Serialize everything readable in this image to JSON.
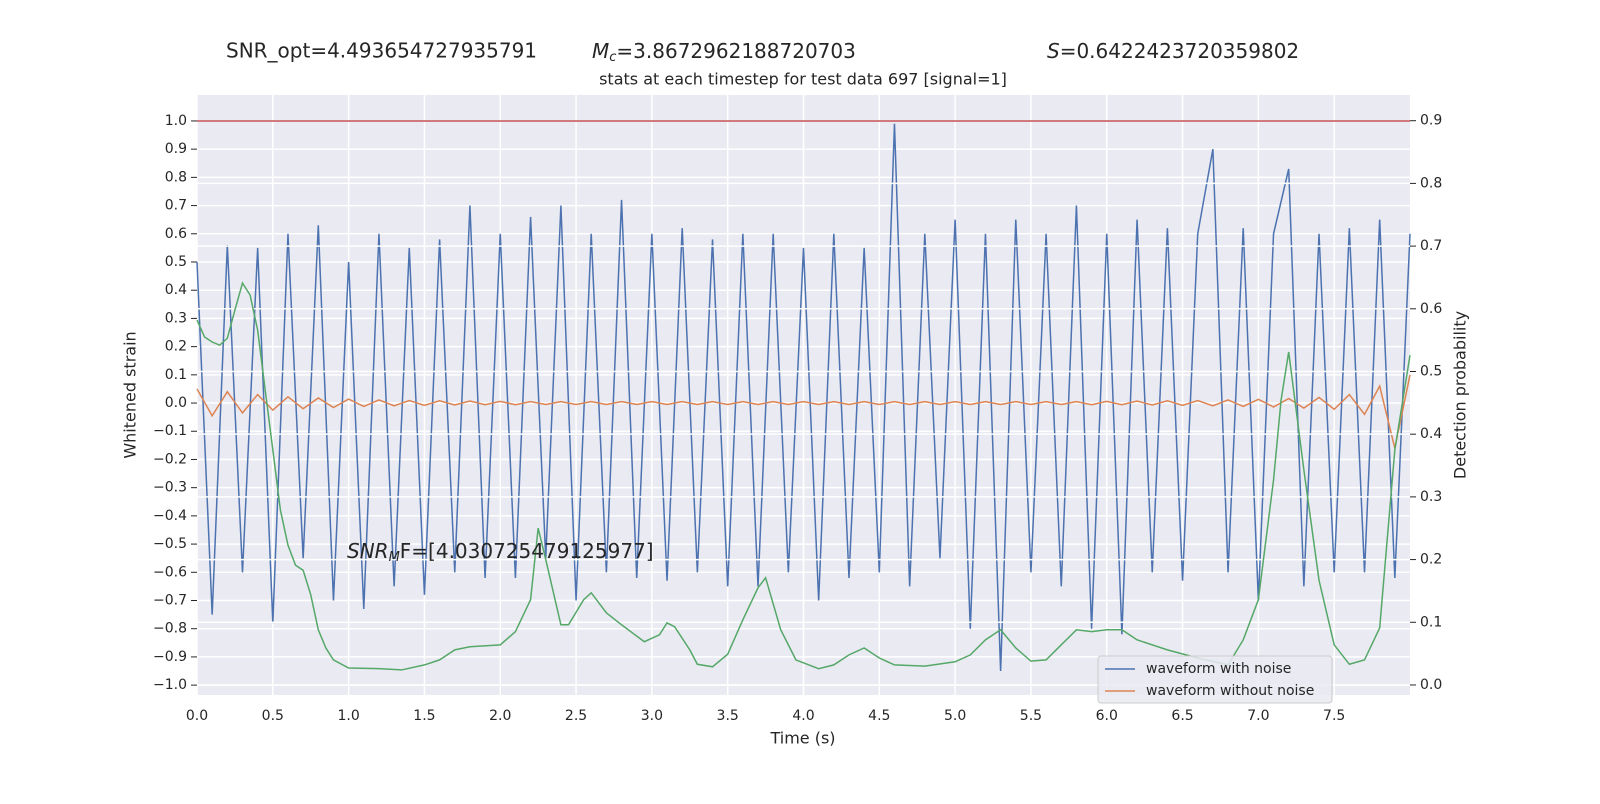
{
  "chart_data": {
    "type": "line",
    "annotations": {
      "snr_opt": "SNR_opt=4.493654727935791",
      "mc": {
        "symbol": "M",
        "subscript": "c",
        "text": "=3.8672962188720703"
      },
      "s": {
        "symbol": "S",
        "text": "=0.6422423720359802"
      },
      "snr_mf": {
        "symbol": "SNR",
        "subscript": "M",
        "text": "F=[4.030725479125977]"
      }
    },
    "title": "stats at each timestep for test data 697 [signal=1]",
    "xlabel": "Time (s)",
    "ylabel": "Whitened strain",
    "y2label": "Detection probability",
    "xlim": [
      0,
      8
    ],
    "ylim": [
      -1.035,
      1.092
    ],
    "y2lim": [
      -0.016,
      0.941
    ],
    "xticks": [
      {
        "value": 0,
        "label": "0.0"
      },
      {
        "value": 0.5,
        "label": "0.5"
      },
      {
        "value": 1,
        "label": "1.0"
      },
      {
        "value": 1.5,
        "label": "1.5"
      },
      {
        "value": 2,
        "label": "2.0"
      },
      {
        "value": 2.5,
        "label": "2.5"
      },
      {
        "value": 3,
        "label": "3.0"
      },
      {
        "value": 3.5,
        "label": "3.5"
      },
      {
        "value": 4,
        "label": "4.0"
      },
      {
        "value": 4.5,
        "label": "4.5"
      },
      {
        "value": 5,
        "label": "5.0"
      },
      {
        "value": 5.5,
        "label": "5.5"
      },
      {
        "value": 6,
        "label": "6.0"
      },
      {
        "value": 6.5,
        "label": "6.5"
      },
      {
        "value": 7,
        "label": "7.0"
      },
      {
        "value": 7.5,
        "label": "7.5"
      }
    ],
    "yticks": [
      {
        "value": -1,
        "label": "−1.0"
      },
      {
        "value": -0.9,
        "label": "−0.9"
      },
      {
        "value": -0.8,
        "label": "−0.8"
      },
      {
        "value": -0.7,
        "label": "−0.7"
      },
      {
        "value": -0.6,
        "label": "−0.6"
      },
      {
        "value": -0.5,
        "label": "−0.5"
      },
      {
        "value": -0.4,
        "label": "−0.4"
      },
      {
        "value": -0.3,
        "label": "−0.3"
      },
      {
        "value": -0.2,
        "label": "−0.2"
      },
      {
        "value": -0.1,
        "label": "−0.1"
      },
      {
        "value": 0,
        "label": "0.0"
      },
      {
        "value": 0.1,
        "label": "0.1"
      },
      {
        "value": 0.2,
        "label": "0.2"
      },
      {
        "value": 0.3,
        "label": "0.3"
      },
      {
        "value": 0.4,
        "label": "0.4"
      },
      {
        "value": 0.5,
        "label": "0.5"
      },
      {
        "value": 0.6,
        "label": "0.6"
      },
      {
        "value": 0.7,
        "label": "0.7"
      },
      {
        "value": 0.8,
        "label": "0.8"
      },
      {
        "value": 0.9,
        "label": "0.9"
      },
      {
        "value": 1,
        "label": "1.0"
      }
    ],
    "y2ticks": [
      {
        "value": 0,
        "label": "0.0"
      },
      {
        "value": 0.1,
        "label": "0.1"
      },
      {
        "value": 0.2,
        "label": "0.2"
      },
      {
        "value": 0.3,
        "label": "0.3"
      },
      {
        "value": 0.4,
        "label": "0.4"
      },
      {
        "value": 0.5,
        "label": "0.5"
      },
      {
        "value": 0.6,
        "label": "0.6"
      },
      {
        "value": 0.7,
        "label": "0.7"
      },
      {
        "value": 0.8,
        "label": "0.8"
      },
      {
        "value": 0.9,
        "label": "0.9"
      }
    ],
    "grid": true,
    "legend": "lower right",
    "x": [
      0,
      0.1,
      0.2,
      0.3,
      0.4,
      0.5,
      0.6,
      0.7,
      0.8,
      0.9,
      1,
      1.1,
      1.2,
      1.3,
      1.4,
      1.5,
      1.6,
      1.7,
      1.8,
      1.9,
      2,
      2.1,
      2.2,
      2.3,
      2.4,
      2.5,
      2.6,
      2.7,
      2.8,
      2.9,
      3,
      3.1,
      3.2,
      3.3,
      3.4,
      3.5,
      3.6,
      3.7,
      3.8,
      3.9,
      4,
      4.1,
      4.2,
      4.3,
      4.4,
      4.5,
      4.6,
      4.7,
      4.8,
      4.9,
      5,
      5.1,
      5.2,
      5.3,
      5.4,
      5.5,
      5.6,
      5.7,
      5.8,
      5.9,
      6,
      6.1,
      6.2,
      6.3,
      6.4,
      6.5,
      6.6,
      6.7,
      6.8,
      6.9,
      7,
      7.1,
      7.2,
      7.3,
      7.4,
      7.5,
      7.6,
      7.7,
      7.8,
      7.9,
      8
    ],
    "series": [
      {
        "name": "waveform with noise",
        "color": "#4c72b0",
        "values": [
          0.5,
          -0.75,
          0.56,
          -0.6,
          0.55,
          -0.78,
          0.6,
          -0.55,
          0.63,
          -0.7,
          0.5,
          -0.73,
          0.6,
          -0.65,
          0.55,
          -0.68,
          0.58,
          -0.6,
          0.7,
          -0.62,
          0.6,
          -0.62,
          0.66,
          -0.55,
          0.7,
          -0.7,
          0.6,
          -0.6,
          0.72,
          -0.62,
          0.6,
          -0.63,
          0.62,
          -0.6,
          0.58,
          -0.65,
          0.6,
          -0.65,
          0.6,
          -0.6,
          0.55,
          -0.7,
          0.6,
          -0.62,
          0.55,
          -0.6,
          0.99,
          -0.65,
          0.6,
          -0.55,
          0.65,
          -0.8,
          0.6,
          -0.95,
          0.65,
          -0.6,
          0.6,
          -0.65,
          0.7,
          -0.8,
          0.6,
          -0.82,
          0.65,
          -0.6,
          0.62,
          -0.63,
          0.6,
          0.9,
          -0.6,
          0.62,
          -0.7,
          0.6,
          0.83,
          -0.65,
          0.6,
          -0.6,
          0.62,
          -0.6,
          0.65,
          -0.62,
          0.6
        ]
      },
      {
        "name": "waveform without noise",
        "color": "#dd8452",
        "values": [
          0.05,
          -0.045,
          0.04,
          -0.035,
          0.03,
          -0.025,
          0.022,
          -0.02,
          0.018,
          -0.016,
          0.014,
          -0.012,
          0.011,
          -0.01,
          0.009,
          -0.008,
          0.008,
          -0.007,
          0.007,
          -0.006,
          0.006,
          -0.006,
          0.005,
          -0.005,
          0.005,
          -0.005,
          0.005,
          -0.005,
          0.005,
          -0.005,
          0.005,
          -0.005,
          0.005,
          -0.005,
          0.005,
          -0.005,
          0.005,
          -0.005,
          0.005,
          -0.005,
          0.005,
          -0.005,
          0.005,
          -0.005,
          0.005,
          -0.005,
          0.005,
          -0.005,
          0.005,
          -0.005,
          0.005,
          -0.005,
          0.005,
          -0.005,
          0.005,
          -0.005,
          0.005,
          -0.005,
          0.005,
          -0.006,
          0.006,
          -0.006,
          0.007,
          -0.007,
          0.008,
          -0.008,
          0.009,
          -0.01,
          0.011,
          -0.012,
          0.013,
          -0.014,
          0.016,
          -0.018,
          0.02,
          -0.022,
          0.03,
          -0.04,
          0.06,
          -0.16,
          0.1
        ]
      },
      {
        "name": "detection probability",
        "color": "#55a868",
        "axis": "y2",
        "x": [
          0,
          0.05,
          0.1,
          0.15,
          0.2,
          0.25,
          0.3,
          0.35,
          0.4,
          0.45,
          0.5,
          0.55,
          0.6,
          0.65,
          0.7,
          0.75,
          0.8,
          0.85,
          0.9,
          1,
          1.2,
          1.35,
          1.5,
          1.6,
          1.7,
          1.8,
          2,
          2.1,
          2.2,
          2.25,
          2.3,
          2.4,
          2.45,
          2.55,
          2.6,
          2.7,
          2.8,
          2.95,
          3.05,
          3.1,
          3.15,
          3.25,
          3.3,
          3.4,
          3.5,
          3.6,
          3.7,
          3.75,
          3.85,
          3.95,
          4.1,
          4.2,
          4.3,
          4.4,
          4.5,
          4.6,
          4.8,
          5,
          5.1,
          5.2,
          5.3,
          5.4,
          5.5,
          5.6,
          5.7,
          5.8,
          5.9,
          6,
          6.1,
          6.2,
          6.4,
          6.6,
          6.8,
          6.9,
          7,
          7.1,
          7.15,
          7.2,
          7.3,
          7.4,
          7.5,
          7.6,
          7.7,
          7.8,
          7.9,
          8
        ],
        "values": [
          0.582,
          0.555,
          0.547,
          0.542,
          0.553,
          0.598,
          0.641,
          0.622,
          0.566,
          0.47,
          0.375,
          0.279,
          0.223,
          0.191,
          0.183,
          0.144,
          0.088,
          0.059,
          0.04,
          0.027,
          0.026,
          0.024,
          0.032,
          0.04,
          0.056,
          0.061,
          0.064,
          0.085,
          0.136,
          0.25,
          0.2,
          0.096,
          0.096,
          0.136,
          0.147,
          0.115,
          0.096,
          0.069,
          0.08,
          0.099,
          0.093,
          0.056,
          0.033,
          0.029,
          0.049,
          0.104,
          0.155,
          0.171,
          0.088,
          0.04,
          0.026,
          0.032,
          0.048,
          0.059,
          0.043,
          0.032,
          0.03,
          0.037,
          0.048,
          0.072,
          0.088,
          0.059,
          0.038,
          0.04,
          0.064,
          0.088,
          0.085,
          0.088,
          0.088,
          0.072,
          0.056,
          0.043,
          0.032,
          0.072,
          0.136,
          0.327,
          0.455,
          0.531,
          0.343,
          0.167,
          0.064,
          0.033,
          0.04,
          0.091,
          0.375,
          0.526
        ]
      }
    ],
    "hline": {
      "value": 1,
      "color": "#c44e52"
    }
  }
}
